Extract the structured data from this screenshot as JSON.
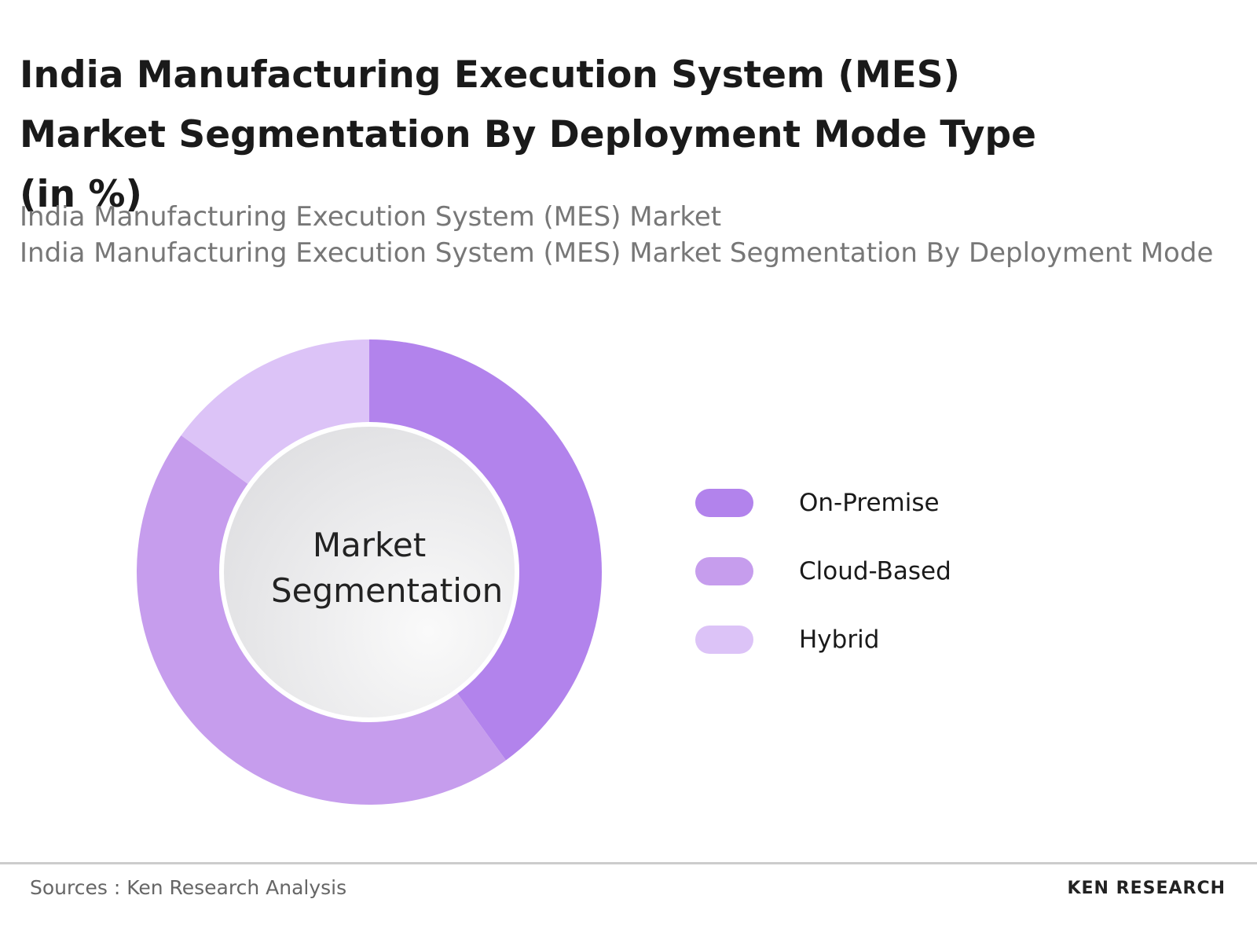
{
  "chart_data": {
    "type": "donut",
    "title": "India Manufacturing Execution System (MES) Market Segmentation By Deployment Mode Type (in %)",
    "subtitle": [
      "India Manufacturing Execution System (MES) Market",
      "India Manufacturing Execution System (MES) Market Segmentation By Deployment Mode"
    ],
    "center_label": "Market Segmentation",
    "categories": [
      "On-Premise",
      "Cloud-Based",
      "Hybrid"
    ],
    "values": [
      40,
      45,
      15
    ],
    "colors": [
      "#b283ec",
      "#c69ded",
      "#dcc3f7"
    ],
    "source": "Sources : Ken Research Analysis",
    "brand": "KEN RESEARCH"
  }
}
